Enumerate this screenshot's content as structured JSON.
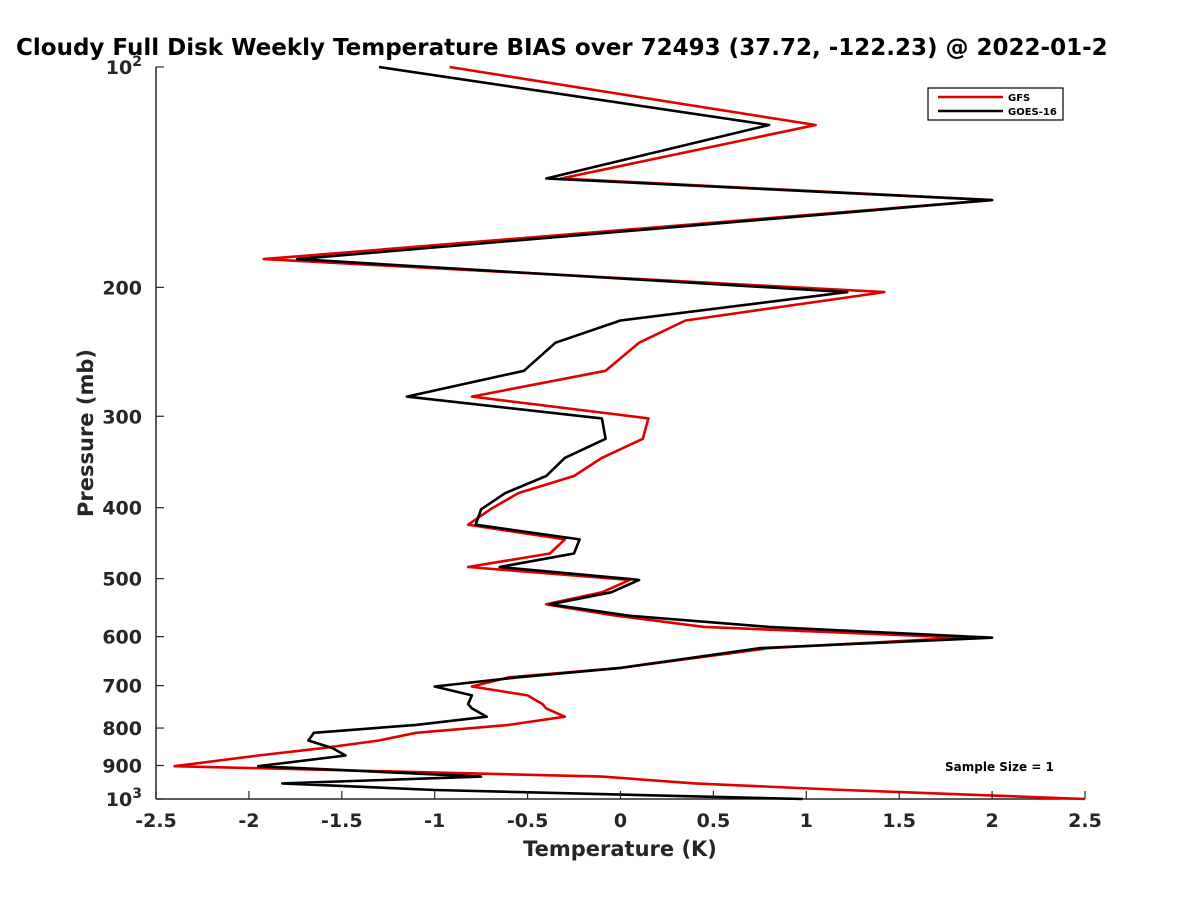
{
  "chart_data": {
    "type": "line",
    "title": "Cloudy Full Disk Weekly Temperature BIAS over 72493 (37.72, -122.23) @ 2022-01-2",
    "xlabel": "Temperature (K)",
    "ylabel": "Pressure (mb)",
    "xlim": [
      -2.5,
      2.5
    ],
    "ylim": [
      100,
      1000
    ],
    "y_scale": "log",
    "y_reversed": true,
    "grid": false,
    "legend_position": "top-right",
    "x_ticks": [
      "-2.5",
      "-2",
      "-1.5",
      "-1",
      "-0.5",
      "0",
      "0.5",
      "1",
      "1.5",
      "2",
      "2.5"
    ],
    "y_ticks": [
      {
        "value": 100,
        "base": "10",
        "exp": "2"
      },
      {
        "value": 200,
        "label": "200"
      },
      {
        "value": 300,
        "label": "300"
      },
      {
        "value": 400,
        "label": "400"
      },
      {
        "value": 500,
        "label": "500"
      },
      {
        "value": 600,
        "label": "600"
      },
      {
        "value": 700,
        "label": "700"
      },
      {
        "value": 800,
        "label": "800"
      },
      {
        "value": 900,
        "label": "900"
      },
      {
        "value": 1000,
        "base": "10",
        "exp": "3"
      }
    ],
    "annotation": "Sample Size = 1",
    "series": [
      {
        "name": "GFS",
        "color": "#e00000",
        "points": [
          [
            -0.92,
            100
          ],
          [
            1.05,
            120
          ],
          [
            -0.32,
            142
          ],
          [
            2.0,
            152
          ],
          [
            -1.92,
            183
          ],
          [
            1.42,
            203
          ],
          [
            0.35,
            222
          ],
          [
            0.1,
            238
          ],
          [
            -0.08,
            260
          ],
          [
            -0.8,
            282
          ],
          [
            0.15,
            302
          ],
          [
            0.12,
            322
          ],
          [
            -0.1,
            342
          ],
          [
            -0.25,
            362
          ],
          [
            -0.55,
            382
          ],
          [
            -0.7,
            402
          ],
          [
            -0.82,
            422
          ],
          [
            -0.3,
            442
          ],
          [
            -0.38,
            462
          ],
          [
            -0.82,
            482
          ],
          [
            0.05,
            502
          ],
          [
            -0.1,
            522
          ],
          [
            -0.4,
            542
          ],
          [
            -0.02,
            562
          ],
          [
            0.45,
            582
          ],
          [
            1.85,
            602
          ],
          [
            0.8,
            622
          ],
          [
            0.0,
            662
          ],
          [
            -0.6,
            682
          ],
          [
            -0.8,
            702
          ],
          [
            -0.5,
            722
          ],
          [
            -0.42,
            742
          ],
          [
            -0.4,
            752
          ],
          [
            -0.3,
            772
          ],
          [
            -0.6,
            792
          ],
          [
            -1.1,
            812
          ],
          [
            -1.3,
            832
          ],
          [
            -1.6,
            852
          ],
          [
            -1.95,
            872
          ],
          [
            -2.4,
            902
          ],
          [
            -0.1,
            932
          ],
          [
            0.4,
            952
          ],
          [
            1.2,
            972
          ],
          [
            2.5,
            1000
          ]
        ]
      },
      {
        "name": "GOES-16",
        "color": "#000000",
        "points": [
          [
            -1.3,
            100
          ],
          [
            0.8,
            120
          ],
          [
            -0.4,
            142
          ],
          [
            2.0,
            152
          ],
          [
            -1.74,
            183
          ],
          [
            1.22,
            203
          ],
          [
            0.0,
            222
          ],
          [
            -0.35,
            238
          ],
          [
            -0.52,
            260
          ],
          [
            -1.15,
            282
          ],
          [
            -0.1,
            302
          ],
          [
            -0.08,
            322
          ],
          [
            -0.3,
            342
          ],
          [
            -0.4,
            362
          ],
          [
            -0.62,
            382
          ],
          [
            -0.75,
            402
          ],
          [
            -0.78,
            422
          ],
          [
            -0.22,
            442
          ],
          [
            -0.25,
            462
          ],
          [
            -0.65,
            482
          ],
          [
            0.1,
            502
          ],
          [
            -0.05,
            522
          ],
          [
            -0.38,
            542
          ],
          [
            0.05,
            562
          ],
          [
            0.8,
            582
          ],
          [
            2.0,
            602
          ],
          [
            0.75,
            622
          ],
          [
            0.0,
            662
          ],
          [
            -0.55,
            682
          ],
          [
            -1.0,
            702
          ],
          [
            -0.8,
            722
          ],
          [
            -0.82,
            742
          ],
          [
            -0.8,
            752
          ],
          [
            -0.72,
            772
          ],
          [
            -1.1,
            792
          ],
          [
            -1.65,
            812
          ],
          [
            -1.68,
            832
          ],
          [
            -1.55,
            852
          ],
          [
            -1.48,
            872
          ],
          [
            -1.95,
            902
          ],
          [
            -0.75,
            932
          ],
          [
            -1.82,
            952
          ],
          [
            -1.0,
            972
          ],
          [
            0.98,
            1000
          ]
        ]
      }
    ]
  }
}
